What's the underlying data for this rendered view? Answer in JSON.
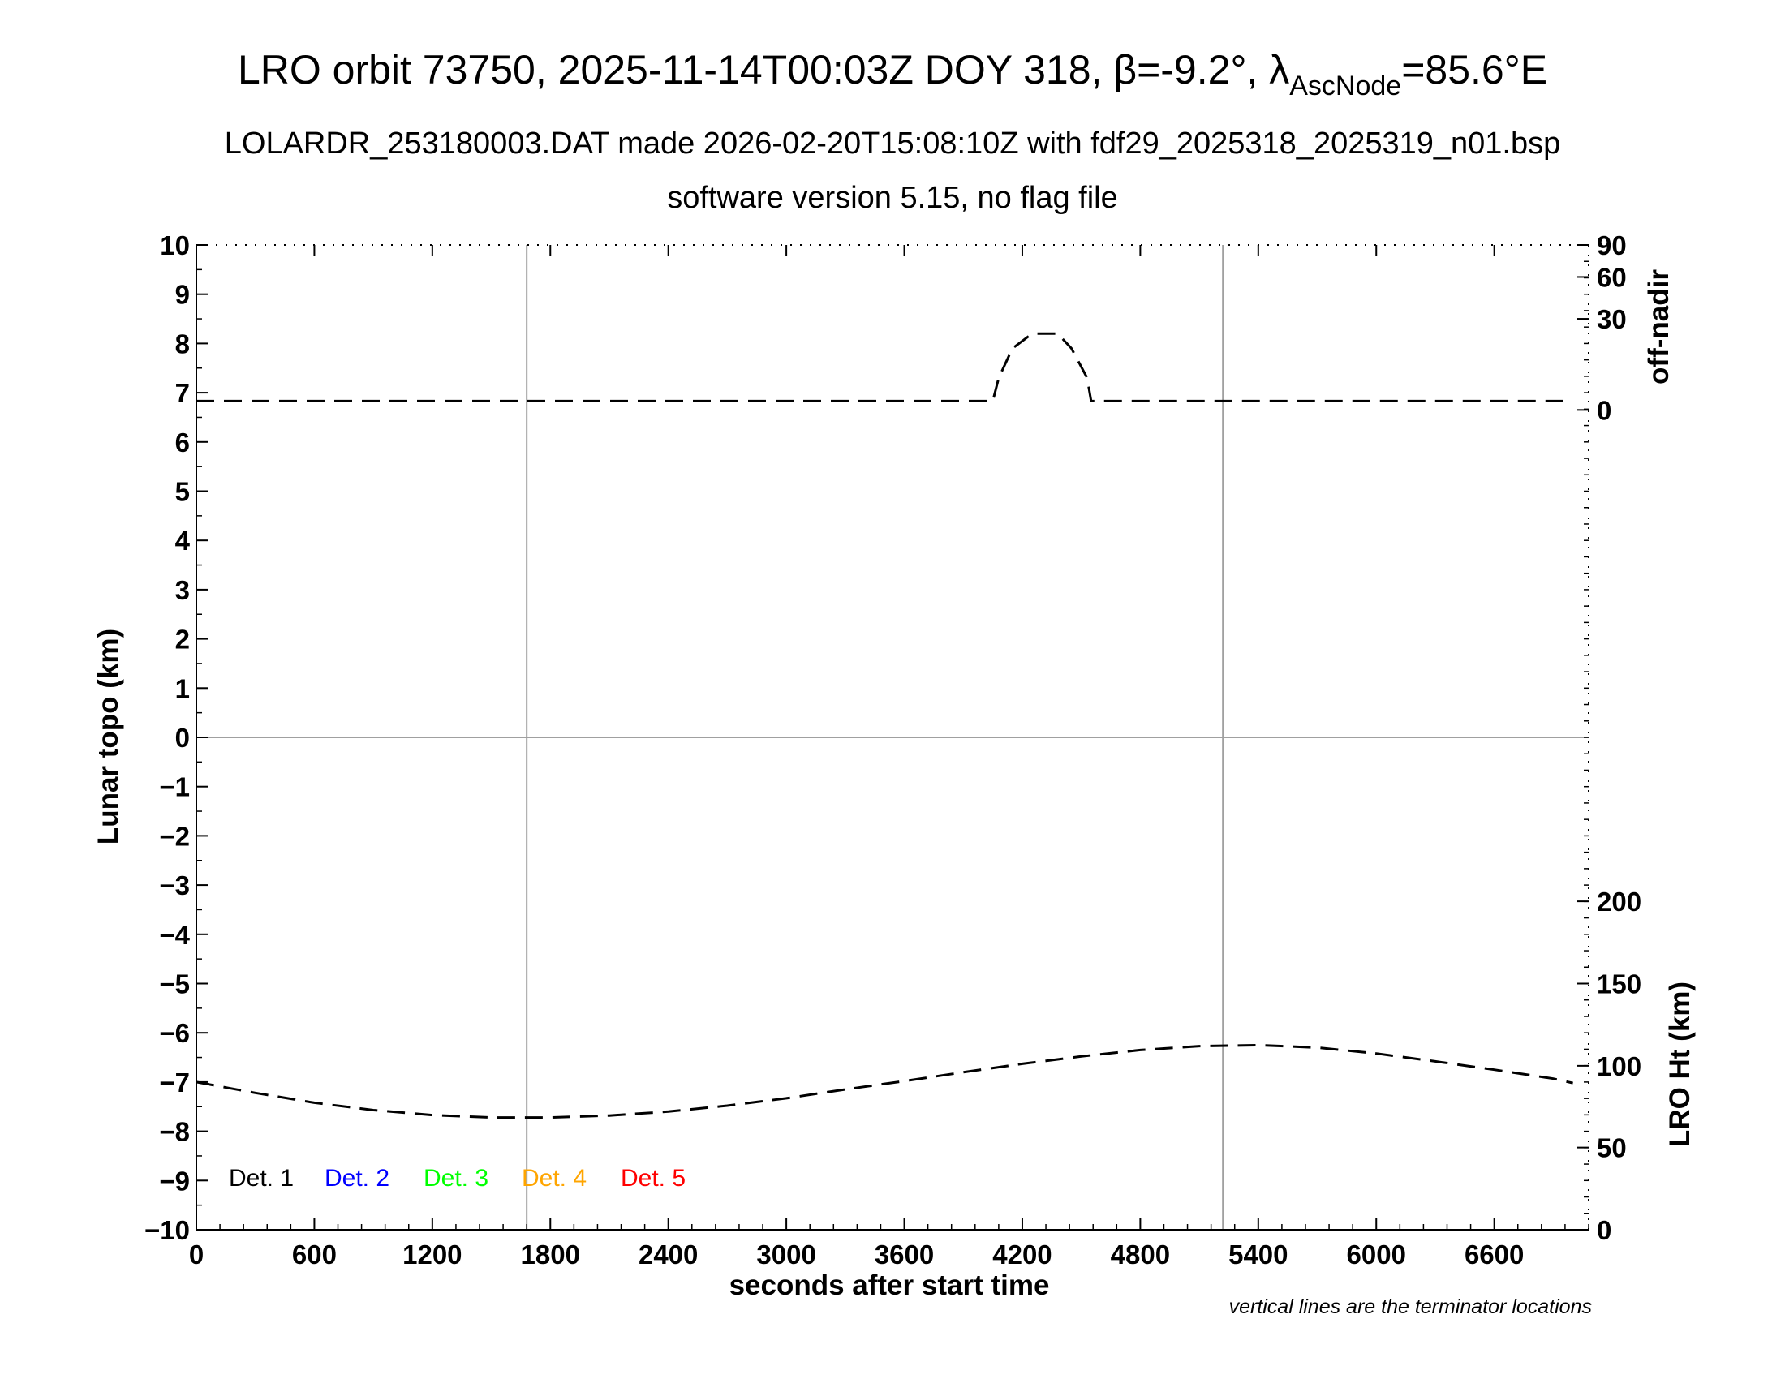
{
  "chart_data": {
    "type": "line",
    "title": "LRO orbit 73750, 2025-11-14T00:03Z DOY 318, β=-9.2°, λ",
    "title_subscript": "AscNode",
    "title_suffix": "=85.6°E",
    "subtitle_line1": "LOLARDR_253180003.DAT made 2026-02-20T15:08:10Z with fdf29_2025318_2025319_n01.bsp",
    "subtitle_line2": "software version 5.15, no flag file",
    "xlabel": "seconds after start time",
    "ylabel_left": "Lunar topo (km)",
    "ylabel_right_top": "off-nadir",
    "ylabel_right_bottom": "LRO Ht (km)",
    "note": "vertical lines are the terminator locations",
    "xlim": [
      0,
      7080
    ],
    "ylim": [
      -10,
      10
    ],
    "x_ticks": [
      0,
      600,
      1200,
      1800,
      2400,
      3000,
      3600,
      4200,
      4800,
      5400,
      6000,
      6600
    ],
    "y_ticks": [
      10,
      9,
      8,
      7,
      6,
      5,
      4,
      3,
      2,
      1,
      0,
      -1,
      -2,
      -3,
      -4,
      -5,
      -6,
      -7,
      -8,
      -9,
      -10
    ],
    "y_tick_labels": [
      "10",
      "9",
      "8",
      "7",
      "6",
      "5",
      "4",
      "3",
      "2",
      "1",
      "0",
      "−1",
      "−2",
      "−3",
      "−4",
      "−5",
      "−6",
      "−7",
      "−8",
      "−9",
      "−10"
    ],
    "off_nadir_ticks": [
      {
        "label": "90",
        "y": 10
      },
      {
        "label": "60",
        "y": 9.35
      },
      {
        "label": "30",
        "y": 8.5
      },
      {
        "label": "0",
        "y": 6.65
      }
    ],
    "lro_ht_ticks": [
      {
        "label": "200",
        "y": -3.33
      },
      {
        "label": "150",
        "y": -5.0
      },
      {
        "label": "100",
        "y": -6.67
      },
      {
        "label": "50",
        "y": -8.33
      },
      {
        "label": "0",
        "y": -10
      }
    ],
    "terminators_x": [
      1680,
      5220
    ],
    "grid_h_y": [
      0
    ],
    "legend": [
      {
        "name": "Det. 1",
        "color": "#000000"
      },
      {
        "name": "Det. 2",
        "color": "#0000ff"
      },
      {
        "name": "Det. 3",
        "color": "#00ff00"
      },
      {
        "name": "Det. 4",
        "color": "#ffa500"
      },
      {
        "name": "Det. 5",
        "color": "#ff0000"
      }
    ],
    "series": [
      {
        "values_desc": "off-nadir angle trace (plotted on topo axis)",
        "x": [
          0,
          600,
          1200,
          1800,
          2400,
          3000,
          3600,
          4050,
          4080,
          4150,
          4250,
          4380,
          4450,
          4530,
          4550,
          5000,
          6000,
          7000
        ],
        "y": [
          6.83,
          6.83,
          6.83,
          6.83,
          6.83,
          6.83,
          6.83,
          6.83,
          7.3,
          7.9,
          8.2,
          8.2,
          7.9,
          7.3,
          6.83,
          6.83,
          6.83,
          6.83
        ]
      },
      {
        "values_desc": "LRO height trace (plotted on topo axis)",
        "x": [
          0,
          300,
          600,
          900,
          1200,
          1500,
          1800,
          2100,
          2400,
          2700,
          3000,
          3300,
          3600,
          3900,
          4200,
          4500,
          4800,
          5100,
          5400,
          5700,
          6000,
          6300,
          6600,
          6900,
          7000
        ],
        "y": [
          -7.0,
          -7.22,
          -7.42,
          -7.57,
          -7.67,
          -7.72,
          -7.72,
          -7.68,
          -7.6,
          -7.48,
          -7.33,
          -7.15,
          -6.98,
          -6.8,
          -6.63,
          -6.48,
          -6.35,
          -6.27,
          -6.25,
          -6.3,
          -6.42,
          -6.58,
          -6.75,
          -6.93,
          -7.02
        ]
      }
    ]
  }
}
